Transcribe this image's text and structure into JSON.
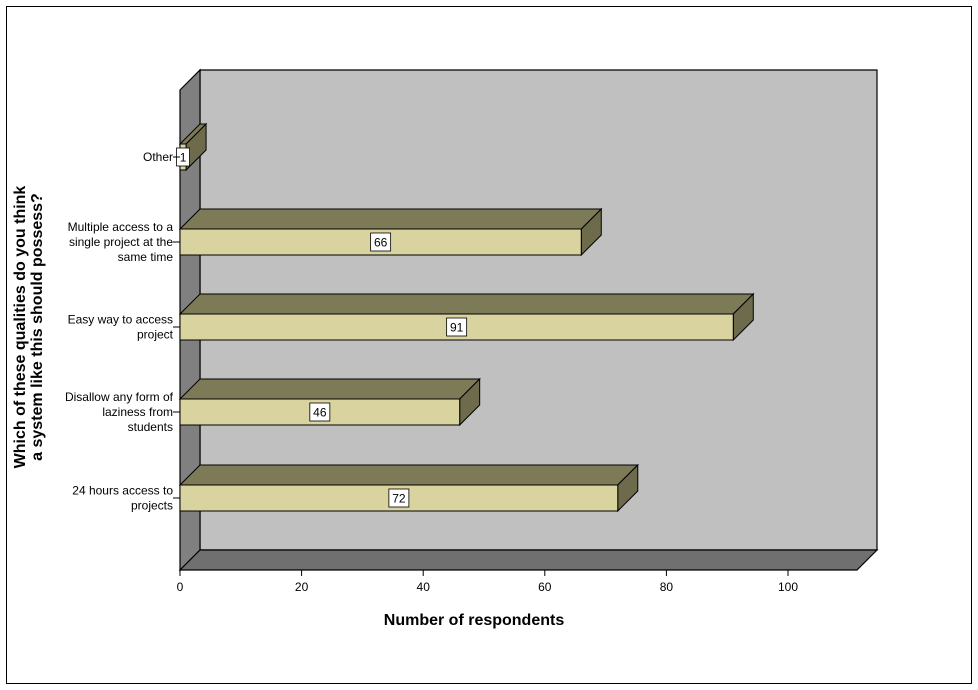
{
  "chart_data": {
    "type": "bar",
    "orientation": "horizontal",
    "style": "3d",
    "xlabel": "Number of respondents",
    "ylabel": "Which of these qualities do you think a system like this should possess?",
    "xlim": [
      0,
      100
    ],
    "xticks": [
      0,
      20,
      40,
      60,
      80,
      100
    ],
    "categories": [
      {
        "lines": [
          "Other"
        ]
      },
      {
        "lines": [
          "Multiple access to a",
          "single project at the",
          "same time"
        ]
      },
      {
        "lines": [
          "Easy way to access",
          "project"
        ]
      },
      {
        "lines": [
          "Disallow any form of",
          "laziness from",
          "students"
        ]
      },
      {
        "lines": [
          "24 hours access to",
          "projects"
        ]
      }
    ],
    "values": [
      1,
      66,
      91,
      46,
      72
    ],
    "grid": false,
    "legend": "none",
    "colors": {
      "bar_front": "#d9d39f",
      "bar_top": "#7d7a58",
      "bar_side": "#6e6b4c",
      "back_wall": "#c0c0c0",
      "side_wall": "#808080",
      "floor": "#707070",
      "label_box": "#ffffff"
    }
  }
}
